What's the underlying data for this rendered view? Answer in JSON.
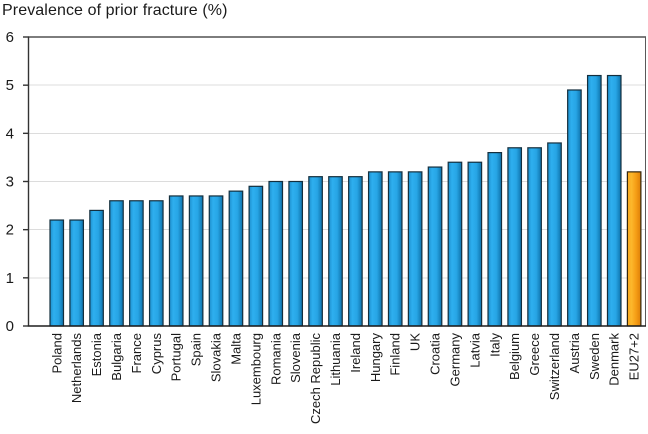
{
  "chart_data": {
    "type": "bar",
    "title": "Prevalence of prior fracture (%)",
    "xlabel": "",
    "ylabel": "",
    "ylim": [
      0,
      6
    ],
    "yticks": [
      0,
      1,
      2,
      3,
      4,
      5,
      6
    ],
    "grid": "horizontal",
    "legend": "none",
    "categories": [
      "Poland",
      "Netherlands",
      "Estonia",
      "Bulgaria",
      "France",
      "Cyprus",
      "Portugal",
      "Spain",
      "Slovakia",
      "Malta",
      "Luxembourg",
      "Romania",
      "Slovenia",
      "Czech Republic",
      "Lithuania",
      "Ireland",
      "Hungary",
      "Finland",
      "UK",
      "Croatia",
      "Germany",
      "Latvia",
      "Italy",
      "Belgium",
      "Greece",
      "Switzerland",
      "Austria",
      "Sweden",
      "Denmark",
      "EU27+2"
    ],
    "values": [
      2.2,
      2.2,
      2.4,
      2.6,
      2.6,
      2.6,
      2.7,
      2.7,
      2.7,
      2.8,
      2.9,
      3.0,
      3.0,
      3.1,
      3.1,
      3.1,
      3.2,
      3.2,
      3.2,
      3.3,
      3.4,
      3.4,
      3.6,
      3.7,
      3.7,
      3.8,
      4.9,
      5.2,
      5.2,
      3.2
    ],
    "highlight_category": "EU27+2",
    "colors": {
      "bar_fill": "#27a5e5",
      "bar_fill_light": "#2eafef",
      "bar_fill_dark": "#0e72ab",
      "bar_border": "#142f3e",
      "highlight_fill": "#f7a81e",
      "highlight_fill_light": "#fdb82c",
      "highlight_fill_dark": "#dd7f08",
      "highlight_border": "#33260f",
      "gridline": "#dcdcdc",
      "axis_top": "#7d7d7d",
      "axis_right": "#595959",
      "axis_left": "#333333",
      "axis_bottom": "#1f1f1f",
      "text": "#1a1a1a"
    }
  }
}
